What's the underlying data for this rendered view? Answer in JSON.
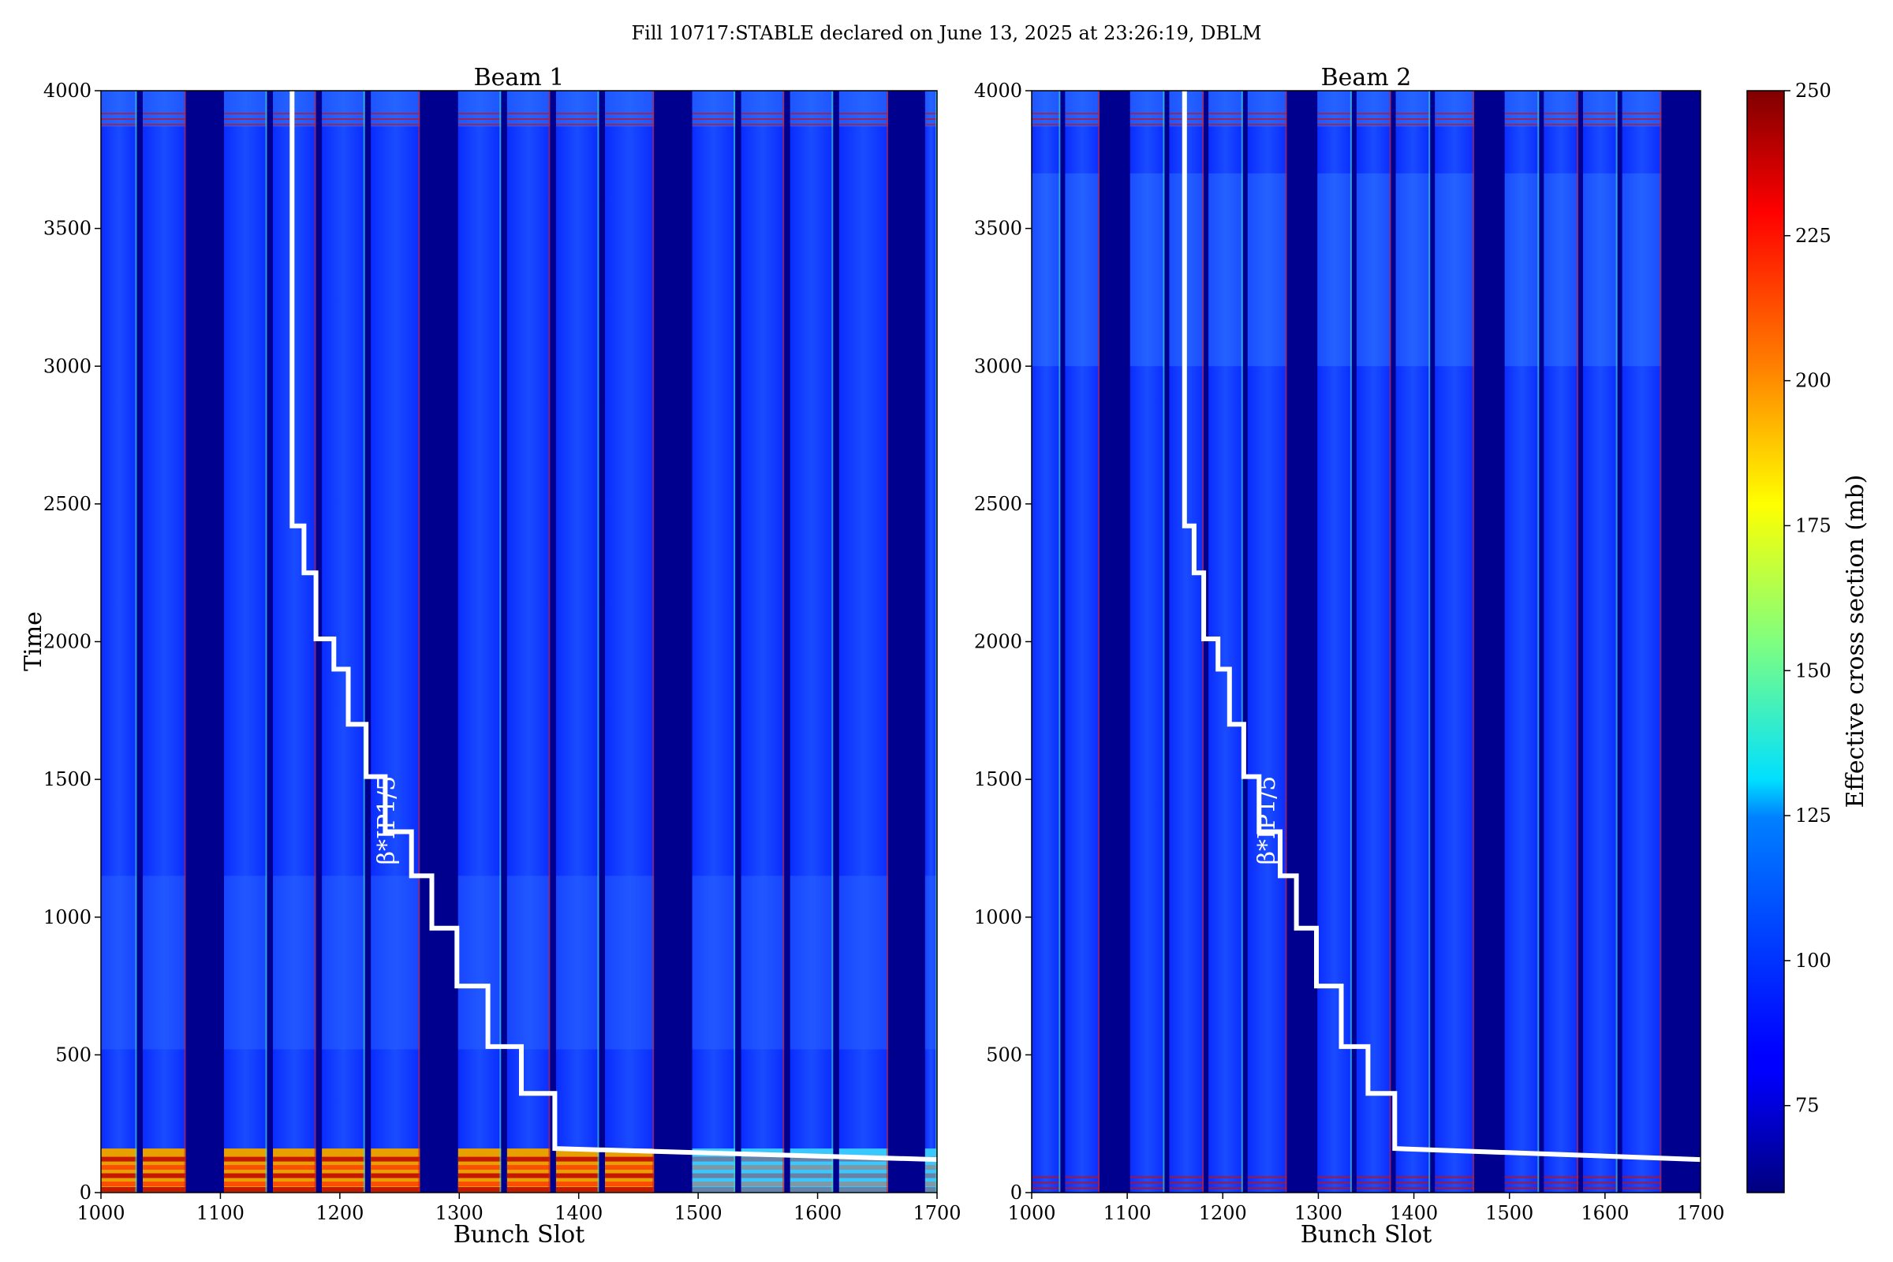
{
  "figure": {
    "title": "Fill 10717:STABLE declared on June 13, 2025 at 23:26:19, DBLM"
  },
  "chart_data": [
    {
      "type": "heatmap",
      "title": "Beam 1",
      "xlabel": "Bunch Slot",
      "ylabel": "Time",
      "xlim": [
        1000,
        1700
      ],
      "ylim": [
        0,
        4000
      ],
      "x_ticks": [
        1000,
        1100,
        1200,
        1300,
        1400,
        1500,
        1600,
        1700
      ],
      "y_ticks": [
        0,
        500,
        1000,
        1500,
        2000,
        2500,
        3000,
        3500,
        4000
      ],
      "trains": [
        [
          1000,
          1030
        ],
        [
          1035,
          1071
        ],
        [
          1103,
          1139
        ],
        [
          1144,
          1180
        ],
        [
          1185,
          1221
        ],
        [
          1226,
          1267
        ],
        [
          1299,
          1335
        ],
        [
          1340,
          1376
        ],
        [
          1381,
          1417
        ],
        [
          1422,
          1463
        ],
        [
          1495,
          1531
        ],
        [
          1536,
          1572
        ],
        [
          1577,
          1613
        ],
        [
          1618,
          1659
        ],
        [
          1690,
          1700
        ]
      ],
      "beta_label": "β*IP1/5",
      "beta_step_curve": [
        [
          1160,
          4000
        ],
        [
          1160,
          2420
        ],
        [
          1170,
          2420
        ],
        [
          1170,
          2250
        ],
        [
          1180,
          2250
        ],
        [
          1180,
          2010
        ],
        [
          1195,
          2010
        ],
        [
          1195,
          1900
        ],
        [
          1207,
          1900
        ],
        [
          1207,
          1700
        ],
        [
          1222,
          1700
        ],
        [
          1222,
          1510
        ],
        [
          1238,
          1510
        ],
        [
          1238,
          1310
        ],
        [
          1260,
          1310
        ],
        [
          1260,
          1150
        ],
        [
          1277,
          1150
        ],
        [
          1277,
          960
        ],
        [
          1298,
          960
        ],
        [
          1298,
          750
        ],
        [
          1324,
          750
        ],
        [
          1324,
          530
        ],
        [
          1352,
          530
        ],
        [
          1352,
          360
        ],
        [
          1380,
          360
        ],
        [
          1380,
          160
        ],
        [
          1700,
          120
        ]
      ]
    },
    {
      "type": "heatmap",
      "title": "Beam 2",
      "xlabel": "Bunch Slot",
      "ylabel": "",
      "xlim": [
        1000,
        1700
      ],
      "ylim": [
        0,
        4000
      ],
      "x_ticks": [
        1000,
        1100,
        1200,
        1300,
        1400,
        1500,
        1600,
        1700
      ],
      "y_ticks": [
        0,
        500,
        1000,
        1500,
        2000,
        2500,
        3000,
        3500,
        4000
      ],
      "trains": [
        [
          1000,
          1030
        ],
        [
          1035,
          1071
        ],
        [
          1103,
          1139
        ],
        [
          1144,
          1180
        ],
        [
          1185,
          1221
        ],
        [
          1226,
          1267
        ],
        [
          1299,
          1335
        ],
        [
          1340,
          1376
        ],
        [
          1381,
          1417
        ],
        [
          1422,
          1463
        ],
        [
          1495,
          1531
        ],
        [
          1536,
          1572
        ],
        [
          1577,
          1613
        ],
        [
          1618,
          1659
        ]
      ],
      "beta_label": "β*IP1/5",
      "beta_step_curve": [
        [
          1160,
          4000
        ],
        [
          1160,
          2420
        ],
        [
          1170,
          2420
        ],
        [
          1170,
          2250
        ],
        [
          1180,
          2250
        ],
        [
          1180,
          2010
        ],
        [
          1195,
          2010
        ],
        [
          1195,
          1900
        ],
        [
          1207,
          1900
        ],
        [
          1207,
          1700
        ],
        [
          1222,
          1700
        ],
        [
          1222,
          1510
        ],
        [
          1238,
          1510
        ],
        [
          1238,
          1310
        ],
        [
          1260,
          1310
        ],
        [
          1260,
          1150
        ],
        [
          1277,
          1150
        ],
        [
          1277,
          960
        ],
        [
          1298,
          960
        ],
        [
          1298,
          750
        ],
        [
          1324,
          750
        ],
        [
          1324,
          530
        ],
        [
          1352,
          530
        ],
        [
          1352,
          360
        ],
        [
          1380,
          360
        ],
        [
          1380,
          160
        ],
        [
          1700,
          120
        ]
      ]
    }
  ],
  "colorbar": {
    "label": "Effective cross section (mb)",
    "range": [
      60,
      250
    ],
    "ticks": [
      75,
      100,
      125,
      150,
      175,
      200,
      225,
      250
    ],
    "colormap": "jet"
  }
}
